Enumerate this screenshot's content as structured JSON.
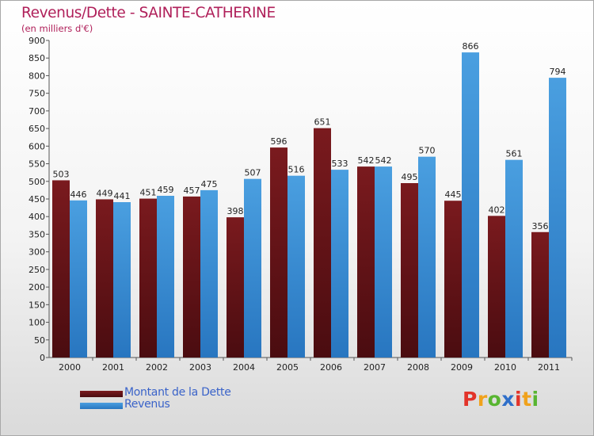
{
  "title": "Revenus/Dette - SAINTE-CATHERINE",
  "subtitle": "(en milliers d'€)",
  "legend": [
    {
      "label": "Montant de la Dette"
    },
    {
      "label": "Revenus"
    }
  ],
  "logo": {
    "letters": [
      "P",
      "r",
      "o",
      "x",
      "i",
      "t",
      "i"
    ],
    "text": "Proxiti"
  },
  "colors": {
    "dette": "#7a1a1e",
    "dette_dark": "#4a0c10",
    "revenus": "#4a9fe0",
    "revenus_dark": "#2876c0",
    "title": "#b0205a",
    "legend_text": "#3a63c9",
    "logo": [
      "#e2342a",
      "#f0a21c",
      "#58b531",
      "#2f6fc9",
      "#e2342a",
      "#f0a21c",
      "#58b531"
    ]
  },
  "chart_data": {
    "type": "bar",
    "categories": [
      "2000",
      "2001",
      "2002",
      "2003",
      "2004",
      "2005",
      "2006",
      "2007",
      "2008",
      "2009",
      "2010",
      "2011"
    ],
    "series": [
      {
        "name": "Montant de la Dette",
        "values": [
          503,
          449,
          451,
          457,
          398,
          596,
          651,
          542,
          495,
          445,
          402,
          356
        ]
      },
      {
        "name": "Revenus",
        "values": [
          446,
          441,
          459,
          475,
          507,
          516,
          533,
          542,
          570,
          866,
          561,
          794
        ]
      }
    ],
    "title": "Revenus/Dette - SAINTE-CATHERINE",
    "ylabel": "(en milliers d'€)",
    "ylim": [
      0,
      900
    ],
    "yticks": [
      0,
      50,
      100,
      150,
      200,
      250,
      300,
      350,
      400,
      450,
      500,
      550,
      600,
      650,
      700,
      750,
      800,
      850,
      900
    ],
    "grid": false,
    "legend_position": "bottom-left"
  }
}
